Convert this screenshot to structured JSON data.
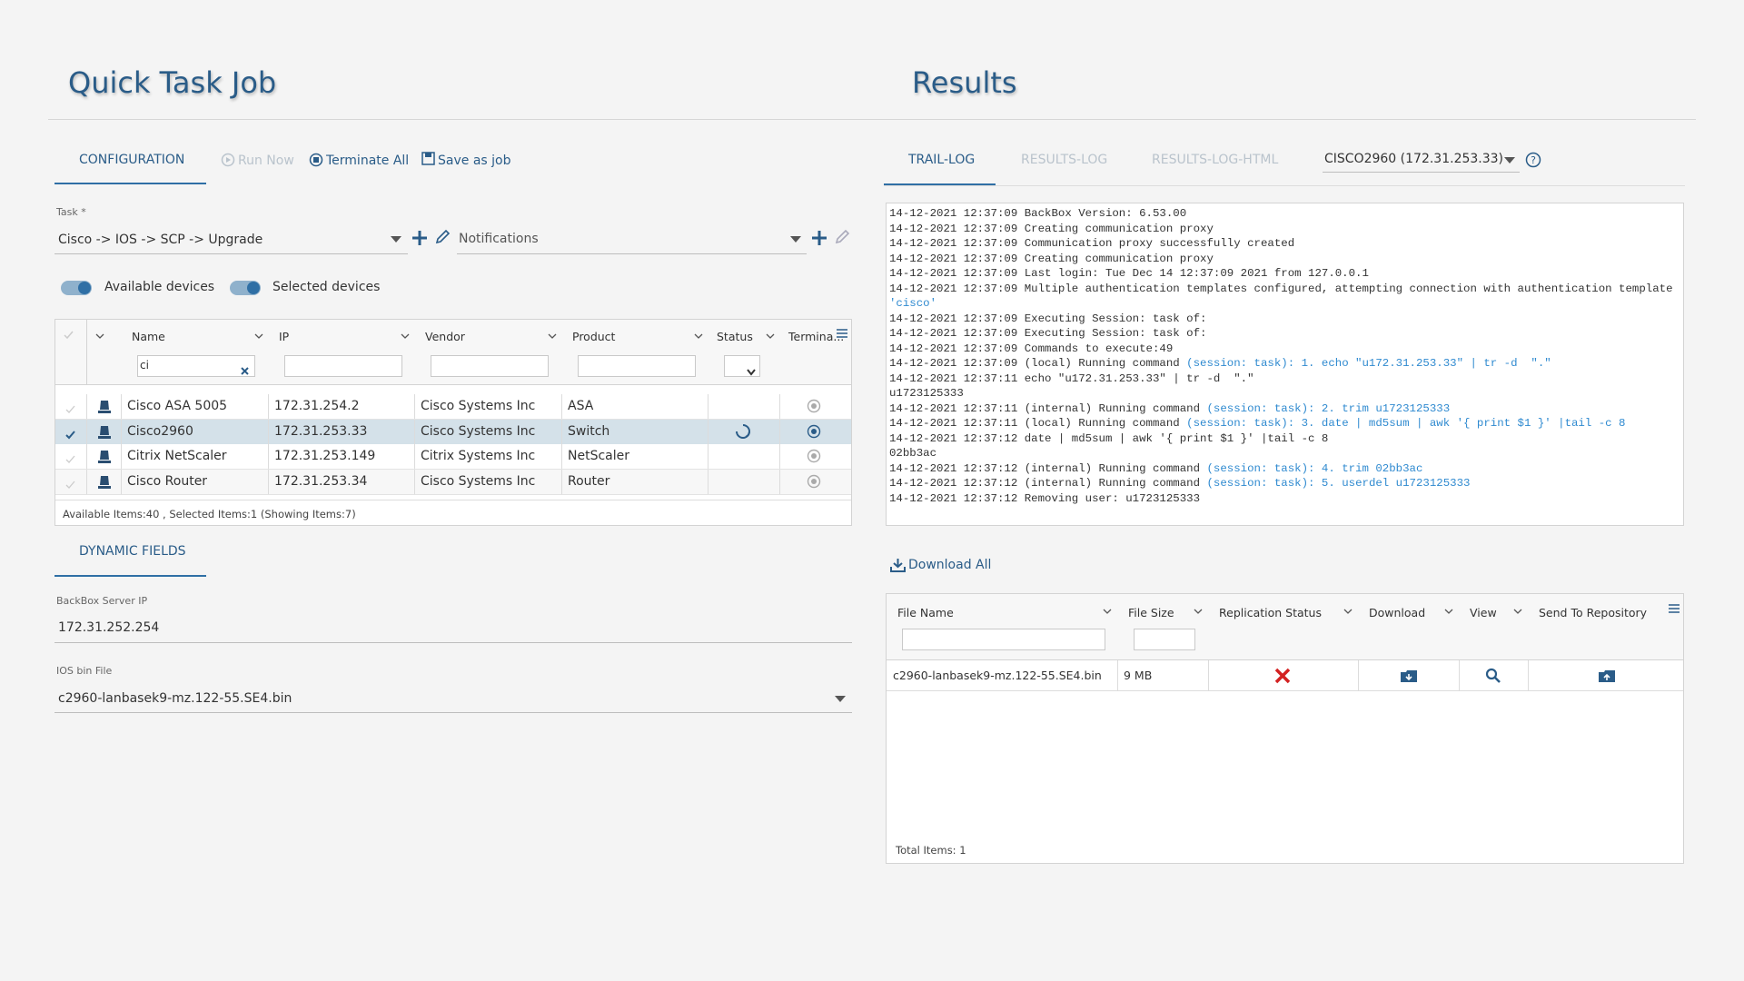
{
  "left": {
    "title": "Quick Task Job",
    "tab": "CONFIGURATION",
    "actions": [
      "Run Now",
      "Terminate All",
      "Save as job"
    ],
    "task_label": "Task *",
    "task_value": "Cisco -> IOS -> SCP -> Upgrade",
    "notifications": "Notifications",
    "toggles": [
      "Available devices",
      "Selected devices"
    ],
    "devices": {
      "columns": [
        "Name",
        "IP",
        "Vendor",
        "Product",
        "Status",
        "Termina..."
      ],
      "name_filter": "ci",
      "rows": [
        [
          "Cisco ASA 5005",
          "172.31.254.2",
          "Cisco Systems Inc",
          "ASA"
        ],
        [
          "Cisco2960",
          "172.31.253.33",
          "Cisco Systems Inc",
          "Switch"
        ],
        [
          "Citrix NetScaler",
          "172.31.253.149",
          "Citrix Systems Inc",
          "NetScaler"
        ],
        [
          "Cisco Router",
          "172.31.253.34",
          "Cisco Systems Inc",
          "Router"
        ]
      ],
      "footer": "Available Items:40 , Selected Items:1 (Showing Items:7)"
    },
    "dynamic_tab": "DYNAMIC FIELDS",
    "fields": [
      {
        "label": "BackBox Server IP",
        "value": "172.31.252.254"
      },
      {
        "label": "IOS bin File",
        "value": "c2960-lanbasek9-mz.122-55.SE4.bin"
      }
    ]
  },
  "right": {
    "title": "Results",
    "tabs": [
      "TRAIL-LOG",
      "RESULTS-LOG",
      "RESULTS-LOG-HTML"
    ],
    "device_select": "CISCO2960 (172.31.253.33)",
    "log": [
      "14-12-2021 12:37:09 BackBox Version: 6.53.00",
      "14-12-2021 12:37:09 Creating communication proxy",
      "14-12-2021 12:37:09 Communication proxy successfully created",
      "14-12-2021 12:37:09 Creating communication proxy",
      "14-12-2021 12:37:09 Last login: Tue Dec 14 12:37:09 2021 from 127.0.0.1",
      "14-12-2021 12:37:09 Multiple authentication templates configured, attempting connection with authentication template",
      {
        "session": "'cisco'"
      },
      "14-12-2021 12:37:09 Executing Session: task of:",
      "14-12-2021 12:37:09 Executing Session: task of:",
      "14-12-2021 12:37:09 Commands to execute:49",
      {
        "text": "14-12-2021 12:37:09 (local) Running command",
        "session": "(session: task): 1. echo \"u172.31.253.33\" | tr -d  \".\""
      },
      "14-12-2021 12:37:11 echo \"u172.31.253.33\" | tr -d  \".\"",
      "u1723125333",
      {
        "text": "14-12-2021 12:37:11 (internal) Running command",
        "session": "(session: task): 2. trim u1723125333"
      },
      {
        "text": "14-12-2021 12:37:11 (local) Running command",
        "session": "(session: task): 3. date | md5sum | awk '{ print $1 }' |tail -c 8"
      },
      "14-12-2021 12:37:12 date | md5sum | awk '{ print $1 }' |tail -c 8",
      "02bb3ac",
      {
        "text": "14-12-2021 12:37:12 (internal) Running command",
        "session": "(session: task): 4. trim 02bb3ac"
      },
      {
        "text": "14-12-2021 12:37:12 (internal) Running command",
        "session": "(session: task): 5. userdel u1723125333"
      },
      "14-12-2021 12:37:12 Removing user: u1723125333"
    ],
    "download_all": "Download All",
    "files": {
      "columns": [
        "File Name",
        "File Size",
        "Replication Status",
        "Download",
        "View",
        "Send To Repository"
      ],
      "rows": [
        [
          "c2960-lanbasek9-mz.122-55.SE4.bin",
          "9 MB"
        ]
      ],
      "footer": "Total Items: 1"
    }
  }
}
